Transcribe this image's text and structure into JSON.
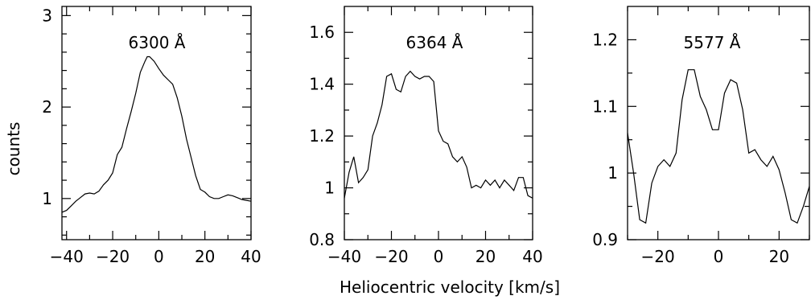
{
  "figure": {
    "ylabel": "counts",
    "xlabel": "Heliocentric velocity [km/s]"
  },
  "chart_data": [
    {
      "type": "line",
      "title": "6300 Å",
      "xlim": [
        -42,
        40
      ],
      "ylim": [
        0.55,
        3.1
      ],
      "xticks": [
        -40,
        -20,
        0,
        20,
        40
      ],
      "xtick_labels": [
        "−40",
        "−20",
        "0",
        "20",
        "40"
      ],
      "xminor": [
        -30,
        -10,
        10,
        30
      ],
      "yticks": [
        1,
        2,
        3
      ],
      "ytick_labels": [
        "1",
        "2",
        "3"
      ],
      "yminor": [
        0.6,
        0.8,
        1.2,
        1.4,
        1.6,
        1.8,
        2.2,
        2.4,
        2.6,
        2.8
      ],
      "series": [
        {
          "x": [
            -42,
            -40,
            -38,
            -36,
            -34,
            -32,
            -30,
            -28,
            -26,
            -24,
            -22,
            -20,
            -18,
            -16,
            -14,
            -12,
            -10,
            -8,
            -6,
            -5,
            -4,
            -2,
            0,
            2,
            4,
            6,
            8,
            10,
            12,
            14,
            16,
            18,
            20,
            22,
            24,
            26,
            28,
            30,
            32,
            34,
            36,
            38,
            40
          ],
          "y": [
            0.85,
            0.87,
            0.92,
            0.97,
            1.01,
            1.05,
            1.06,
            1.05,
            1.08,
            1.15,
            1.2,
            1.28,
            1.48,
            1.56,
            1.76,
            1.95,
            2.15,
            2.38,
            2.5,
            2.55,
            2.55,
            2.5,
            2.42,
            2.35,
            2.3,
            2.25,
            2.1,
            1.9,
            1.65,
            1.45,
            1.25,
            1.1,
            1.07,
            1.02,
            1.0,
            1.0,
            1.02,
            1.04,
            1.03,
            1.01,
            0.99,
            0.98,
            0.97
          ]
        }
      ]
    },
    {
      "type": "line",
      "title": "6364 Å",
      "xlim": [
        -40,
        40
      ],
      "ylim": [
        0.8,
        1.7
      ],
      "xticks": [
        -40,
        -20,
        0,
        20,
        40
      ],
      "xtick_labels": [
        "−40",
        "−20",
        "0",
        "20",
        "40"
      ],
      "xminor": [
        -30,
        -10,
        10,
        30
      ],
      "yticks": [
        0.8,
        1.0,
        1.2,
        1.4,
        1.6
      ],
      "ytick_labels": [
        "0.8",
        "1",
        "1.2",
        "1.4",
        "1.6"
      ],
      "yminor": [
        0.9,
        1.1,
        1.3,
        1.5
      ],
      "series": [
        {
          "x": [
            -40,
            -38,
            -36,
            -34,
            -32,
            -30,
            -28,
            -26,
            -24,
            -22,
            -20,
            -18,
            -16,
            -14,
            -12,
            -10,
            -8,
            -6,
            -4,
            -2,
            0,
            2,
            4,
            6,
            8,
            10,
            12,
            14,
            16,
            18,
            20,
            22,
            24,
            26,
            28,
            30,
            32,
            34,
            36,
            38,
            40
          ],
          "y": [
            0.96,
            1.06,
            1.12,
            1.02,
            1.04,
            1.07,
            1.2,
            1.25,
            1.32,
            1.43,
            1.44,
            1.38,
            1.37,
            1.43,
            1.45,
            1.43,
            1.42,
            1.43,
            1.43,
            1.41,
            1.22,
            1.18,
            1.17,
            1.12,
            1.1,
            1.12,
            1.08,
            1.0,
            1.01,
            1.0,
            1.03,
            1.01,
            1.03,
            1.0,
            1.03,
            1.01,
            0.99,
            1.04,
            1.04,
            0.97,
            0.96
          ]
        }
      ]
    },
    {
      "type": "line",
      "title": "5577 Å",
      "xlim": [
        -30,
        30
      ],
      "ylim": [
        0.9,
        1.25
      ],
      "xticks": [
        -20,
        0,
        20
      ],
      "xtick_labels": [
        "−20",
        "0",
        "20"
      ],
      "xminor": [
        -30,
        -10,
        10,
        30
      ],
      "yticks": [
        0.9,
        1.0,
        1.1,
        1.2
      ],
      "ytick_labels": [
        "0.9",
        "1",
        "1.1",
        "1.2"
      ],
      "yminor": [
        0.95,
        1.05,
        1.15
      ],
      "series": [
        {
          "x": [
            -30,
            -28,
            -26,
            -24,
            -22,
            -20,
            -18,
            -16,
            -14,
            -12,
            -10,
            -8,
            -6,
            -4,
            -2,
            0,
            2,
            4,
            6,
            8,
            10,
            12,
            14,
            16,
            18,
            20,
            22,
            24,
            26,
            28,
            30
          ],
          "y": [
            1.06,
            1.0,
            0.93,
            0.925,
            0.985,
            1.01,
            1.02,
            1.01,
            1.03,
            1.11,
            1.155,
            1.155,
            1.115,
            1.095,
            1.065,
            1.065,
            1.12,
            1.14,
            1.135,
            1.095,
            1.03,
            1.035,
            1.02,
            1.01,
            1.025,
            1.005,
            0.97,
            0.93,
            0.925,
            0.95,
            0.98
          ]
        }
      ]
    }
  ]
}
